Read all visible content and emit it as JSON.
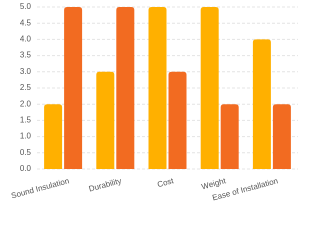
{
  "chart_data": {
    "type": "bar",
    "categories": [
      "Sound Insulation",
      "Durability",
      "Cost",
      "Weight",
      "Ease of Installation"
    ],
    "series": [
      {
        "color": "#ffb000",
        "values": [
          2,
          3,
          5,
          5,
          4
        ]
      },
      {
        "color": "#f26b21",
        "values": [
          5,
          5,
          3,
          2,
          2
        ]
      }
    ],
    "ylim": [
      0,
      5
    ],
    "yticks": [
      {
        "value": 0,
        "label": "0.0"
      },
      {
        "value": 0.5,
        "label": "0.5"
      },
      {
        "value": 1,
        "label": "1.0"
      },
      {
        "value": 1.5,
        "label": "1.5"
      },
      {
        "value": 2,
        "label": "2.0"
      },
      {
        "value": 2.5,
        "label": "2.5"
      },
      {
        "value": 3,
        "label": "3.0"
      },
      {
        "value": 3.5,
        "label": "3.5"
      },
      {
        "value": 4,
        "label": "4.0"
      },
      {
        "value": 4.5,
        "label": "4.5"
      },
      {
        "value": 5,
        "label": "5.0"
      }
    ],
    "grid": true
  }
}
